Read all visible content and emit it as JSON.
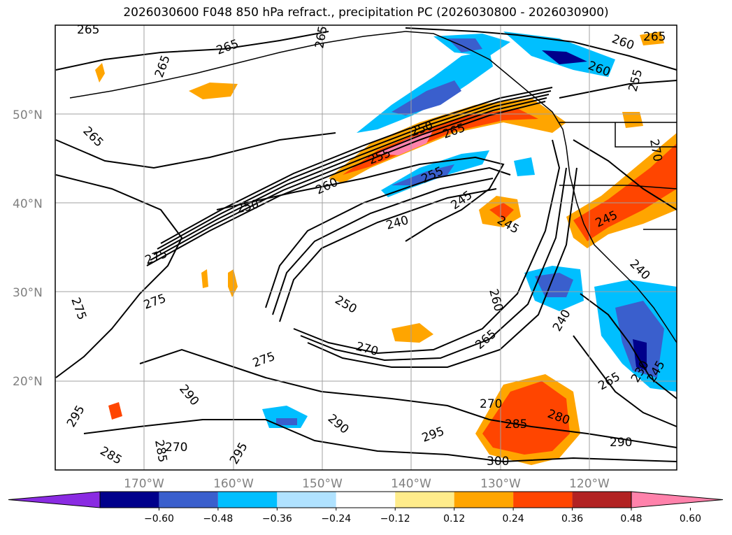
{
  "title": "2026030600 F048 850 hPa refract., precipitation PC (2026030800 - 2026030900)",
  "map": {
    "lon_labels": [
      "170°W",
      "160°W",
      "150°W",
      "140°W",
      "130°W",
      "120°W"
    ],
    "lat_labels": [
      "50°N",
      "40°N",
      "30°N",
      "20°N"
    ],
    "contour_labels": [
      {
        "text": "265"
      },
      {
        "text": "265"
      },
      {
        "text": "265"
      },
      {
        "text": "265"
      },
      {
        "text": "265"
      },
      {
        "text": "260"
      },
      {
        "text": "260"
      },
      {
        "text": "255"
      },
      {
        "text": "250"
      },
      {
        "text": "265"
      },
      {
        "text": "255"
      },
      {
        "text": "260"
      },
      {
        "text": "250"
      },
      {
        "text": "255"
      },
      {
        "text": "245"
      },
      {
        "text": "240"
      },
      {
        "text": "245"
      },
      {
        "text": "245"
      },
      {
        "text": "240"
      },
      {
        "text": "270"
      },
      {
        "text": "275"
      },
      {
        "text": "275"
      },
      {
        "text": "275"
      },
      {
        "text": "250"
      },
      {
        "text": "260"
      },
      {
        "text": "270"
      },
      {
        "text": "265"
      },
      {
        "text": "240"
      },
      {
        "text": "275"
      },
      {
        "text": "290"
      },
      {
        "text": "295"
      },
      {
        "text": "285"
      },
      {
        "text": "285"
      },
      {
        "text": "270"
      },
      {
        "text": "290"
      },
      {
        "text": "295"
      },
      {
        "text": "295"
      },
      {
        "text": "270"
      },
      {
        "text": "285"
      },
      {
        "text": "280"
      },
      {
        "text": "300"
      },
      {
        "text": "265"
      },
      {
        "text": "230"
      },
      {
        "text": "245"
      },
      {
        "text": "290"
      },
      {
        "text": "265"
      }
    ]
  },
  "colorbar": {
    "ticks": [
      "−0.60",
      "−0.48",
      "−0.36",
      "−0.24",
      "−0.12",
      "0.12",
      "0.24",
      "0.36",
      "0.48",
      "0.60"
    ],
    "colors": [
      "#8a2be2",
      "#00008b",
      "#3a5fcd",
      "#00bfff",
      "#b0e2ff",
      "#ffffff",
      "#ffec8b",
      "#ffa500",
      "#ff4500",
      "#b22222",
      "#ff82ab"
    ]
  },
  "colors": {
    "frame": "#000000",
    "grid": "#a0a0a0",
    "contour": "#000000"
  }
}
